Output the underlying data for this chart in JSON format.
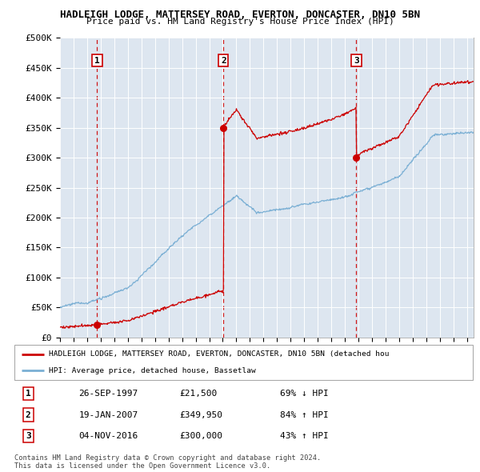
{
  "title_line1": "HADLEIGH LODGE, MATTERSEY ROAD, EVERTON, DONCASTER, DN10 5BN",
  "title_line2": "Price paid vs. HM Land Registry's House Price Index (HPI)",
  "yticks": [
    0,
    50000,
    100000,
    150000,
    200000,
    250000,
    300000,
    350000,
    400000,
    450000,
    500000
  ],
  "xlim_start": 1995.0,
  "xlim_end": 2025.5,
  "ylim_min": 0,
  "ylim_max": 500000,
  "transactions": [
    {
      "label": "1",
      "date_num": 1997.74,
      "price": 21500
    },
    {
      "label": "2",
      "date_num": 2007.05,
      "price": 349950
    },
    {
      "label": "3",
      "date_num": 2016.84,
      "price": 300000
    }
  ],
  "transaction_labels": [
    {
      "num": "1",
      "date": "26-SEP-1997",
      "price": "£21,500",
      "hpi": "69% ↓ HPI"
    },
    {
      "num": "2",
      "date": "19-JAN-2007",
      "price": "£349,950",
      "hpi": "84% ↑ HPI"
    },
    {
      "num": "3",
      "date": "04-NOV-2016",
      "price": "£300,000",
      "hpi": "43% ↑ HPI"
    }
  ],
  "legend_line1": "HADLEIGH LODGE, MATTERSEY ROAD, EVERTON, DONCASTER, DN10 5BN (detached hou",
  "legend_line2": "HPI: Average price, detached house, Bassetlaw",
  "footer_line1": "Contains HM Land Registry data © Crown copyright and database right 2024.",
  "footer_line2": "This data is licensed under the Open Government Licence v3.0.",
  "plot_bg_color": "#dde6f0",
  "hpi_color": "#7aafd4",
  "price_color": "#cc0000",
  "vline_color": "#cc0000"
}
